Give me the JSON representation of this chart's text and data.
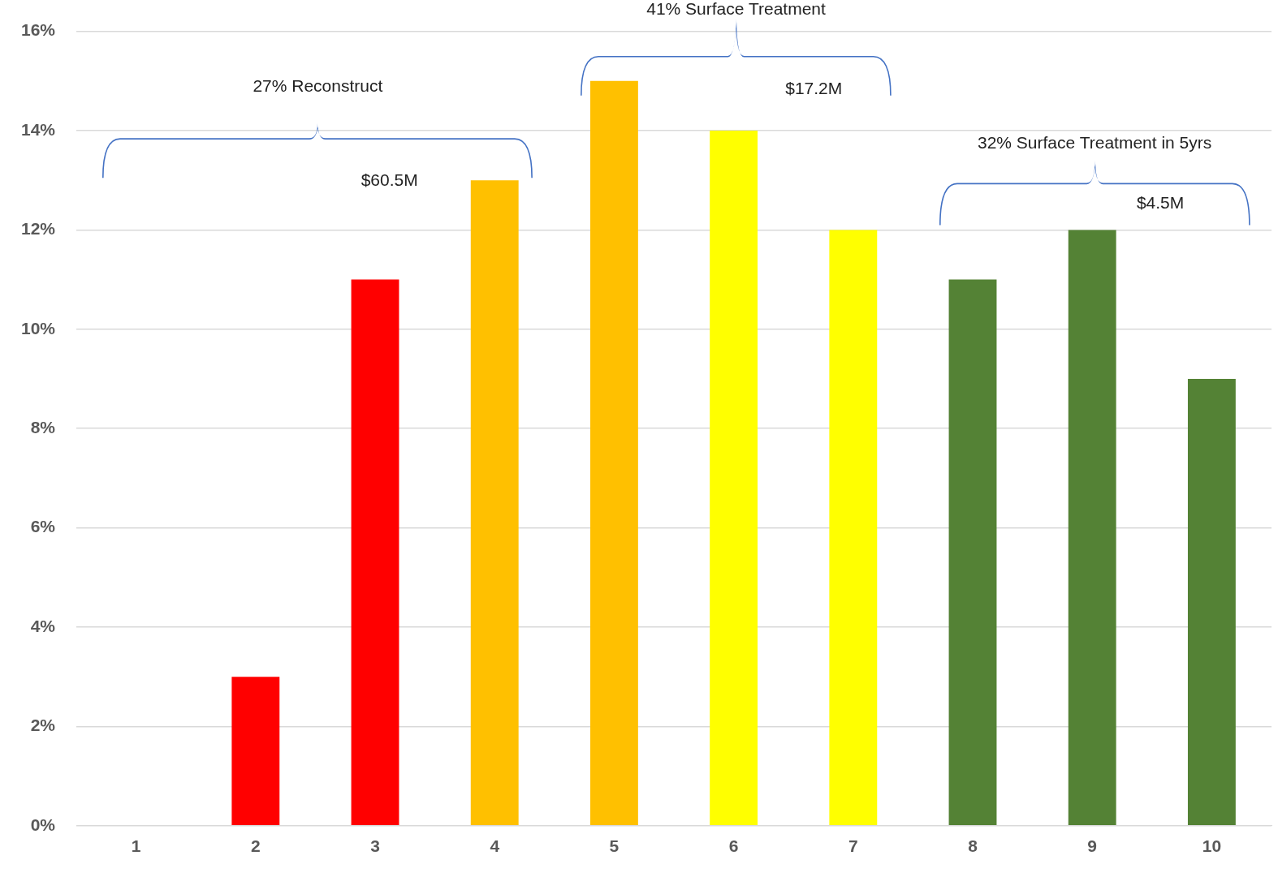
{
  "chart_data": {
    "type": "bar",
    "categories": [
      "1",
      "2",
      "3",
      "4",
      "5",
      "6",
      "7",
      "8",
      "9",
      "10"
    ],
    "values": [
      0,
      3,
      11,
      13,
      15,
      14,
      12,
      11,
      12,
      9
    ],
    "colors": [
      "#ff0000",
      "#ff0000",
      "#ff0000",
      "#ffc000",
      "#ffc000",
      "#ffff00",
      "#ffff00",
      "#548235",
      "#548235",
      "#548235"
    ],
    "ylim": [
      0,
      16
    ],
    "yticks": [
      {
        "value": 0,
        "label": "0%"
      },
      {
        "value": 2,
        "label": "2%"
      },
      {
        "value": 4,
        "label": "4%"
      },
      {
        "value": 6,
        "label": "6%"
      },
      {
        "value": 8,
        "label": "8%"
      },
      {
        "value": 10,
        "label": "10%"
      },
      {
        "value": 12,
        "label": "12%"
      },
      {
        "value": 14,
        "label": "14%"
      },
      {
        "value": 16,
        "label": "16%"
      }
    ],
    "grid": "y",
    "legend": false,
    "annotations": [
      "27% Reconstruct",
      "$60.5M",
      "41% Surface Treatment",
      "$17.2M",
      "32% Surface Treatment in 5yrs",
      "$4.5M"
    ]
  }
}
